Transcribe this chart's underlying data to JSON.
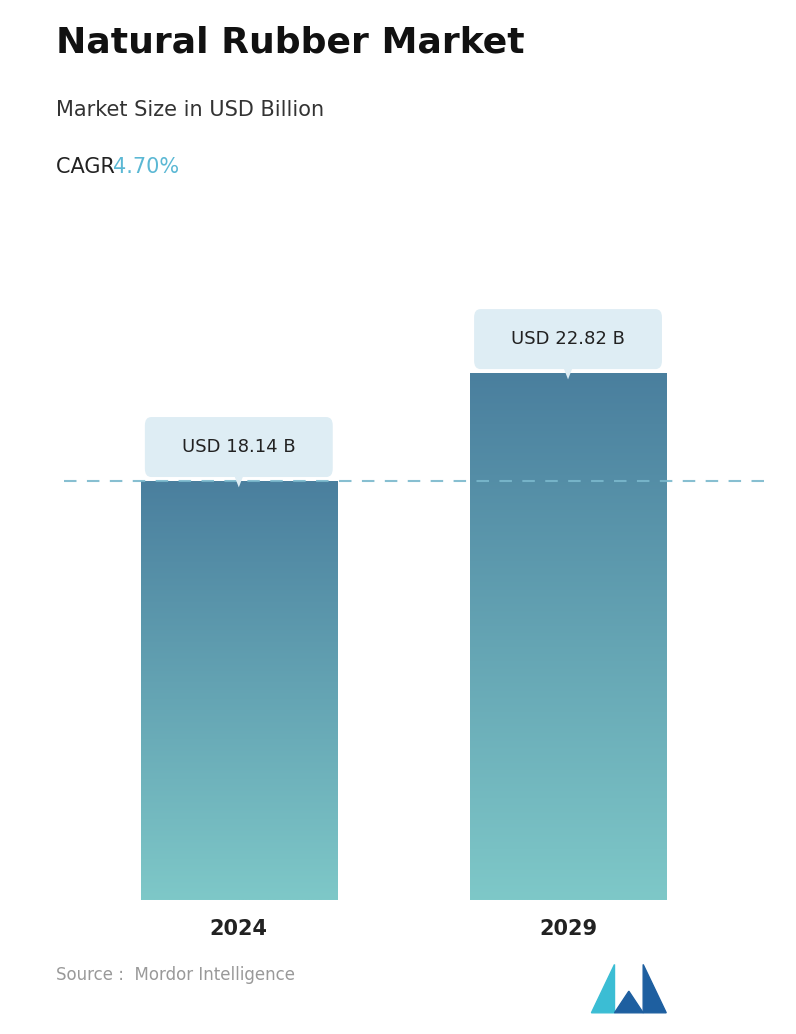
{
  "title": "Natural Rubber Market",
  "subtitle": "Market Size in USD Billion",
  "cagr_label": "CAGR ",
  "cagr_value": "4.70%",
  "cagr_color": "#5bb8d4",
  "categories": [
    "2024",
    "2029"
  ],
  "values": [
    18.14,
    22.82
  ],
  "bar_labels": [
    "USD 18.14 B",
    "USD 22.82 B"
  ],
  "bar_top_color": "#4a7f9e",
  "bar_bottom_color": "#7ec8c8",
  "dashed_line_color": "#7ab8cc",
  "dashed_line_value": 18.14,
  "source_text": "Source :  Mordor Intelligence",
  "source_color": "#999999",
  "background_color": "#ffffff",
  "ylim": [
    0,
    26
  ],
  "title_fontsize": 26,
  "subtitle_fontsize": 15,
  "cagr_fontsize": 15,
  "bar_label_fontsize": 13,
  "xtick_fontsize": 15,
  "source_fontsize": 12,
  "tooltip_bg": "#deedf4",
  "tooltip_text_color": "#222222"
}
